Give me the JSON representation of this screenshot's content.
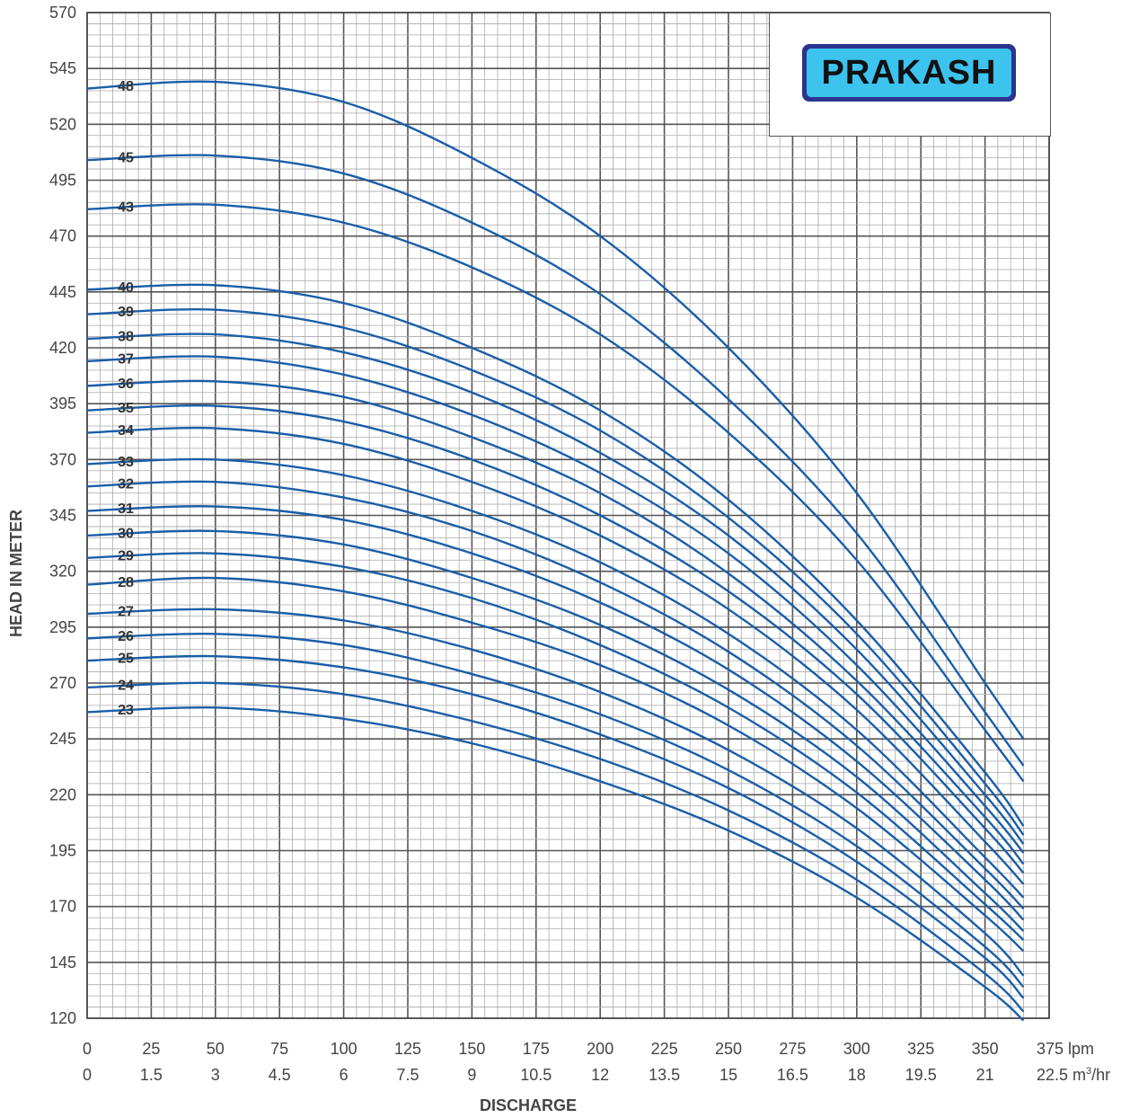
{
  "chart_data": {
    "type": "line",
    "ylabel": "HEAD IN METER",
    "xlabel": "DISCHARGE",
    "x_unit_primary": "lpm",
    "x_unit_secondary": "m³/hr",
    "ylim": [
      120,
      570
    ],
    "xlim": [
      0,
      375
    ],
    "y_ticks": [
      "120",
      "145",
      "170",
      "195",
      "220",
      "245",
      "270",
      "295",
      "320",
      "345",
      "370",
      "395",
      "420",
      "445",
      "470",
      "495",
      "520",
      "545",
      "570"
    ],
    "x_ticks_lpm": [
      "0",
      "25",
      "50",
      "75",
      "100",
      "125",
      "150",
      "175",
      "200",
      "225",
      "250",
      "275",
      "300",
      "325",
      "350",
      "375 lpm"
    ],
    "x_ticks_m3hr": [
      "0",
      "1.5",
      "3",
      "4.5",
      "6",
      "7.5",
      "9",
      "10.5",
      "12",
      "13.5",
      "15",
      "16.5",
      "18",
      "19.5",
      "21",
      "22.5"
    ],
    "grid": true,
    "x": [
      0,
      50,
      100,
      150,
      200,
      250,
      300,
      350,
      365
    ],
    "series": [
      {
        "name": "48",
        "values": [
          536,
          539,
          530,
          505,
          470,
          420,
          355,
          270,
          245
        ]
      },
      {
        "name": "45",
        "values": [
          504,
          506,
          498,
          476,
          444,
          397,
          337,
          257,
          233
        ]
      },
      {
        "name": "43",
        "values": [
          482,
          484,
          476,
          456,
          426,
          382,
          325,
          249,
          226
        ]
      },
      {
        "name": "40",
        "values": [
          446,
          448,
          440,
          420,
          392,
          352,
          298,
          230,
          206
        ]
      },
      {
        "name": "39",
        "values": [
          435,
          437,
          429,
          410,
          383,
          344,
          292,
          225,
          202
        ]
      },
      {
        "name": "38",
        "values": [
          424,
          426,
          418,
          400,
          373,
          336,
          285,
          220,
          198
        ]
      },
      {
        "name": "37",
        "values": [
          414,
          416,
          408,
          390,
          364,
          328,
          278,
          215,
          194
        ]
      },
      {
        "name": "36",
        "values": [
          403,
          405,
          398,
          380,
          355,
          319,
          271,
          210,
          189
        ]
      },
      {
        "name": "35",
        "values": [
          392,
          394,
          387,
          370,
          345,
          311,
          265,
          205,
          185
        ]
      },
      {
        "name": "34",
        "values": [
          382,
          384,
          377,
          360,
          336,
          303,
          258,
          199,
          180
        ]
      },
      {
        "name": "33",
        "values": [
          368,
          370,
          363,
          347,
          324,
          292,
          249,
          192,
          174
        ]
      },
      {
        "name": "32",
        "values": [
          358,
          360,
          353,
          338,
          315,
          284,
          242,
          187,
          169
        ]
      },
      {
        "name": "31",
        "values": [
          347,
          349,
          343,
          328,
          306,
          276,
          235,
          182,
          164
        ]
      },
      {
        "name": "30",
        "values": [
          336,
          338,
          332,
          317,
          296,
          267,
          228,
          176,
          159
        ]
      },
      {
        "name": "29",
        "values": [
          326,
          328,
          322,
          308,
          287,
          259,
          221,
          171,
          155
        ]
      },
      {
        "name": "28",
        "values": [
          314,
          317,
          311,
          297,
          278,
          251,
          214,
          166,
          150
        ]
      },
      {
        "name": "27",
        "values": [
          301,
          303,
          298,
          285,
          266,
          240,
          205,
          158,
          139
        ]
      },
      {
        "name": "26",
        "values": [
          290,
          292,
          287,
          274,
          256,
          231,
          197,
          152,
          134
        ]
      },
      {
        "name": "25",
        "values": [
          280,
          282,
          277,
          265,
          247,
          223,
          190,
          147,
          129
        ]
      },
      {
        "name": "24",
        "values": [
          268,
          270,
          265,
          253,
          236,
          213,
          182,
          140,
          123
        ]
      },
      {
        "name": "23",
        "values": [
          257,
          259,
          254,
          243,
          226,
          204,
          174,
          134,
          119
        ]
      }
    ],
    "line_color": "#1a5ea8"
  },
  "logo": {
    "text": "PRAKASH",
    "border_color": "#2a3490",
    "fill_color": "#3cc3ee"
  }
}
